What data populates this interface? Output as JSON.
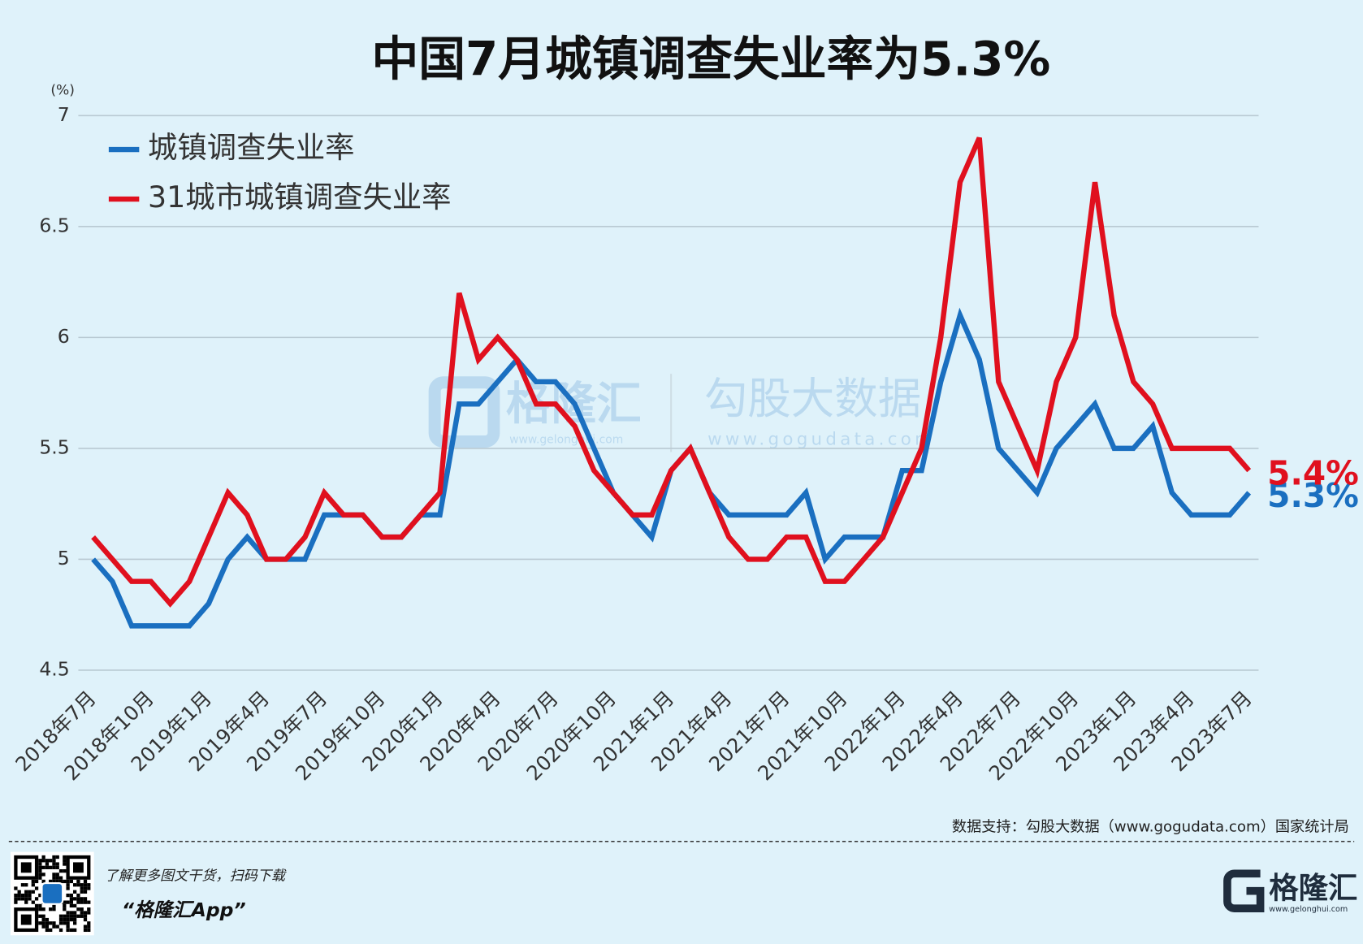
{
  "chart_data": {
    "type": "line",
    "title": "中国7月城镇调查失业率为5.3%",
    "y_unit": "(%)",
    "categories": [
      "2018年7月",
      null,
      null,
      "2018年10月",
      null,
      null,
      "2019年1月",
      null,
      null,
      "2019年4月",
      null,
      null,
      "2019年7月",
      null,
      null,
      "2019年10月",
      null,
      null,
      "2020年1月",
      null,
      null,
      "2020年4月",
      null,
      null,
      "2020年7月",
      null,
      null,
      "2020年10月",
      null,
      null,
      "2021年1月",
      null,
      null,
      "2021年4月",
      null,
      null,
      "2021年7月",
      null,
      null,
      "2021年10月",
      null,
      null,
      "2022年1月",
      null,
      null,
      "2022年4月",
      null,
      null,
      "2022年7月",
      null,
      null,
      "2022年10月",
      null,
      null,
      "2023年1月",
      null,
      null,
      "2023年4月",
      null,
      null,
      "2023年7月"
    ],
    "series": [
      {
        "name": "城镇调查失业率",
        "color": "#1a6fc0",
        "values": [
          5.0,
          4.9,
          4.7,
          4.7,
          4.7,
          4.7,
          4.8,
          5.0,
          5.1,
          5.0,
          5.0,
          5.0,
          5.2,
          5.2,
          5.2,
          5.1,
          5.1,
          5.2,
          5.2,
          5.7,
          5.7,
          5.8,
          5.9,
          5.8,
          5.8,
          5.7,
          5.5,
          5.3,
          5.2,
          5.1,
          5.4,
          5.5,
          5.3,
          5.2,
          5.2,
          5.2,
          5.2,
          5.3,
          5.0,
          5.1,
          5.1,
          5.1,
          5.4,
          5.4,
          5.8,
          6.1,
          5.9,
          5.5,
          5.4,
          5.3,
          5.5,
          5.6,
          5.7,
          5.5,
          5.5,
          5.6,
          5.3,
          5.2,
          5.2,
          5.2,
          5.3
        ],
        "value_labels": [
          null,
          null,
          null,
          null,
          null,
          null,
          null,
          null,
          null,
          null,
          null,
          null,
          null,
          null,
          null,
          null,
          null,
          null,
          null,
          null,
          null,
          null,
          null,
          null,
          null,
          null,
          null,
          null,
          null,
          null,
          null,
          null,
          null,
          null,
          null,
          null,
          null,
          null,
          null,
          null,
          null,
          null,
          null,
          null,
          null,
          null,
          null,
          null,
          null,
          null,
          null,
          null,
          null,
          null,
          null,
          null,
          null,
          null,
          null,
          null,
          "5.3%"
        ]
      },
      {
        "name": "31城市城镇调查失业率",
        "color": "#e0101e",
        "values": [
          5.1,
          5.0,
          4.9,
          4.9,
          4.8,
          4.9,
          5.1,
          5.3,
          5.2,
          5.0,
          5.0,
          5.1,
          5.3,
          5.2,
          5.2,
          5.1,
          5.1,
          5.2,
          5.3,
          6.2,
          5.9,
          6.0,
          5.9,
          5.7,
          5.7,
          5.6,
          5.4,
          5.3,
          5.2,
          5.2,
          5.4,
          5.5,
          5.3,
          5.1,
          5.0,
          5.0,
          5.1,
          5.1,
          4.9,
          4.9,
          5.0,
          5.1,
          5.3,
          5.5,
          6.0,
          6.7,
          6.9,
          5.8,
          5.6,
          5.4,
          5.8,
          6.0,
          6.7,
          6.1,
          5.8,
          5.7,
          5.5,
          5.5,
          5.5,
          5.5,
          5.4
        ],
        "value_labels": [
          null,
          null,
          null,
          null,
          null,
          null,
          null,
          null,
          null,
          null,
          null,
          null,
          null,
          null,
          null,
          null,
          null,
          null,
          null,
          null,
          null,
          null,
          null,
          null,
          null,
          null,
          null,
          null,
          null,
          null,
          null,
          null,
          null,
          null,
          null,
          null,
          null,
          null,
          null,
          null,
          null,
          null,
          null,
          null,
          null,
          null,
          null,
          null,
          null,
          null,
          null,
          null,
          null,
          null,
          null,
          null,
          null,
          null,
          null,
          null,
          "5.4%"
        ]
      }
    ],
    "ylim": [
      4.5,
      7
    ],
    "yticks": [
      4.5,
      5,
      5.5,
      6,
      6.5,
      7
    ],
    "grid": true,
    "legend": "upper left",
    "source": "数据支持：勾股大数据（www.gogudata.com）国家统计局"
  },
  "watermark": {
    "left": "格隆汇",
    "left_url": "www.gelonghui.com",
    "right": "勾股大数据",
    "right_url": "www.gogudata.com"
  },
  "footer": {
    "promo": "了解更多图文干货，扫码下载",
    "app": "“格隆汇App”",
    "logo": "格隆汇",
    "logo_url": "www.gelonghui.com"
  }
}
